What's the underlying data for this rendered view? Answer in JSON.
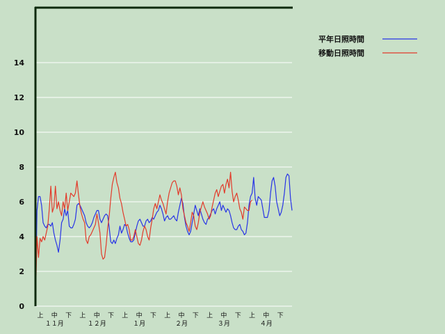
{
  "chart_data": {
    "type": "line",
    "ylim": [
      0,
      16
    ],
    "yticks": [
      0,
      2,
      4,
      6,
      8,
      10,
      12,
      14
    ],
    "grid": true,
    "legend_position": "top-right",
    "dekad_labels": [
      "上",
      "中",
      "下"
    ],
    "months": [
      "１１月",
      "１２月",
      "１月",
      "２月",
      "３月",
      "４月"
    ],
    "colors": {
      "background": "#c9e0c8",
      "grid": "#ffffff",
      "axis": "#0d2a0d",
      "normal": "#2733e6",
      "moving": "#e23a2a"
    },
    "series": [
      {
        "name": "平年日照時間",
        "color": "#2733e6",
        "values": [
          0,
          5.5,
          6.3,
          6.3,
          5.8,
          4.8,
          4.6,
          4.5,
          4.7,
          4.7,
          4.6,
          4.8,
          4.2,
          3.8,
          3.5,
          3.1,
          3.8,
          4.8,
          5.0,
          5.6,
          5.2,
          5.5,
          4.6,
          4.5,
          4.5,
          4.7,
          5.0,
          5.8,
          5.9,
          5.8,
          5.6,
          5.4,
          5.2,
          4.8,
          4.6,
          4.5,
          4.6,
          4.8,
          5.1,
          5.3,
          5.5,
          5.5,
          5.0,
          4.8,
          5.0,
          5.2,
          5.3,
          5.2,
          4.5,
          3.7,
          3.6,
          3.8,
          3.6,
          3.9,
          4.1,
          4.6,
          4.2,
          4.4,
          4.7,
          4.6,
          4.2,
          3.9,
          3.7,
          3.7,
          3.8,
          4.2,
          4.6,
          4.9,
          5.0,
          4.8,
          4.6,
          4.6,
          4.9,
          5.0,
          4.8,
          4.9,
          5.1,
          5.0,
          5.2,
          5.4,
          5.5,
          5.8,
          5.6,
          5.3,
          4.9,
          5.1,
          5.2,
          5.0,
          5.0,
          5.1,
          5.2,
          5.0,
          4.9,
          5.4,
          5.8,
          6.2,
          5.9,
          5.1,
          4.6,
          4.3,
          4.1,
          4.3,
          4.8,
          5.3,
          5.8,
          5.5,
          5.2,
          5.6,
          5.3,
          5.0,
          4.8,
          4.7,
          5.0,
          5.1,
          5.3,
          5.5,
          5.6,
          5.3,
          5.6,
          5.8,
          6.0,
          5.5,
          5.8,
          5.6,
          5.4,
          5.6,
          5.5,
          5.2,
          4.8,
          4.5,
          4.4,
          4.4,
          4.6,
          4.7,
          4.4,
          4.3,
          4.1,
          4.2,
          4.8,
          5.8,
          6.3,
          6.5,
          7.4,
          6.2,
          5.8,
          6.3,
          6.2,
          6.1,
          5.6,
          5.1,
          5.1,
          5.1,
          5.5,
          6.5,
          7.2,
          7.4,
          6.9,
          6.0,
          5.6,
          5.2,
          5.4,
          5.8,
          6.5,
          7.4,
          7.6,
          7.5,
          6.2,
          5.5
        ]
      },
      {
        "name": "移動日照時間",
        "color": "#e23a2a",
        "values": [
          0,
          4.0,
          2.8,
          3.9,
          3.7,
          4.0,
          3.8,
          4.2,
          4.6,
          5.6,
          6.9,
          5.4,
          5.7,
          6.9,
          5.6,
          6.0,
          5.5,
          5.2,
          6.0,
          5.6,
          6.5,
          5.5,
          6.0,
          6.5,
          6.4,
          6.3,
          6.5,
          7.2,
          6.4,
          5.7,
          5.3,
          5.0,
          4.8,
          3.8,
          3.6,
          4.0,
          4.1,
          4.3,
          4.5,
          4.7,
          5.3,
          4.8,
          4.2,
          3.0,
          2.7,
          2.8,
          3.5,
          4.5,
          5.2,
          6.2,
          7.0,
          7.4,
          7.7,
          7.1,
          6.8,
          6.2,
          5.9,
          5.4,
          5.0,
          4.6,
          4.7,
          4.4,
          3.8,
          3.8,
          4.0,
          4.4,
          4.0,
          3.6,
          3.5,
          3.8,
          4.3,
          4.6,
          4.4,
          4.0,
          3.8,
          4.5,
          5.0,
          5.6,
          5.9,
          5.6,
          6.0,
          6.4,
          6.1,
          5.9,
          5.6,
          5.3,
          6.0,
          6.5,
          6.8,
          7.1,
          7.2,
          7.2,
          6.9,
          6.4,
          6.8,
          6.4,
          5.6,
          5.2,
          4.8,
          4.6,
          4.3,
          4.8,
          5.4,
          5.2,
          4.6,
          4.4,
          4.8,
          5.4,
          5.7,
          6.0,
          5.7,
          5.5,
          5.3,
          5.0,
          5.2,
          5.7,
          6.1,
          6.5,
          6.7,
          6.3,
          6.6,
          6.9,
          7.0,
          6.5,
          7.0,
          7.3,
          6.8,
          7.7,
          6.6,
          6.0,
          6.3,
          6.5,
          6.1,
          5.6,
          5.4,
          5.0,
          5.7,
          5.6,
          5.5,
          5.5,
          6.0,
          6.1
        ]
      }
    ]
  }
}
